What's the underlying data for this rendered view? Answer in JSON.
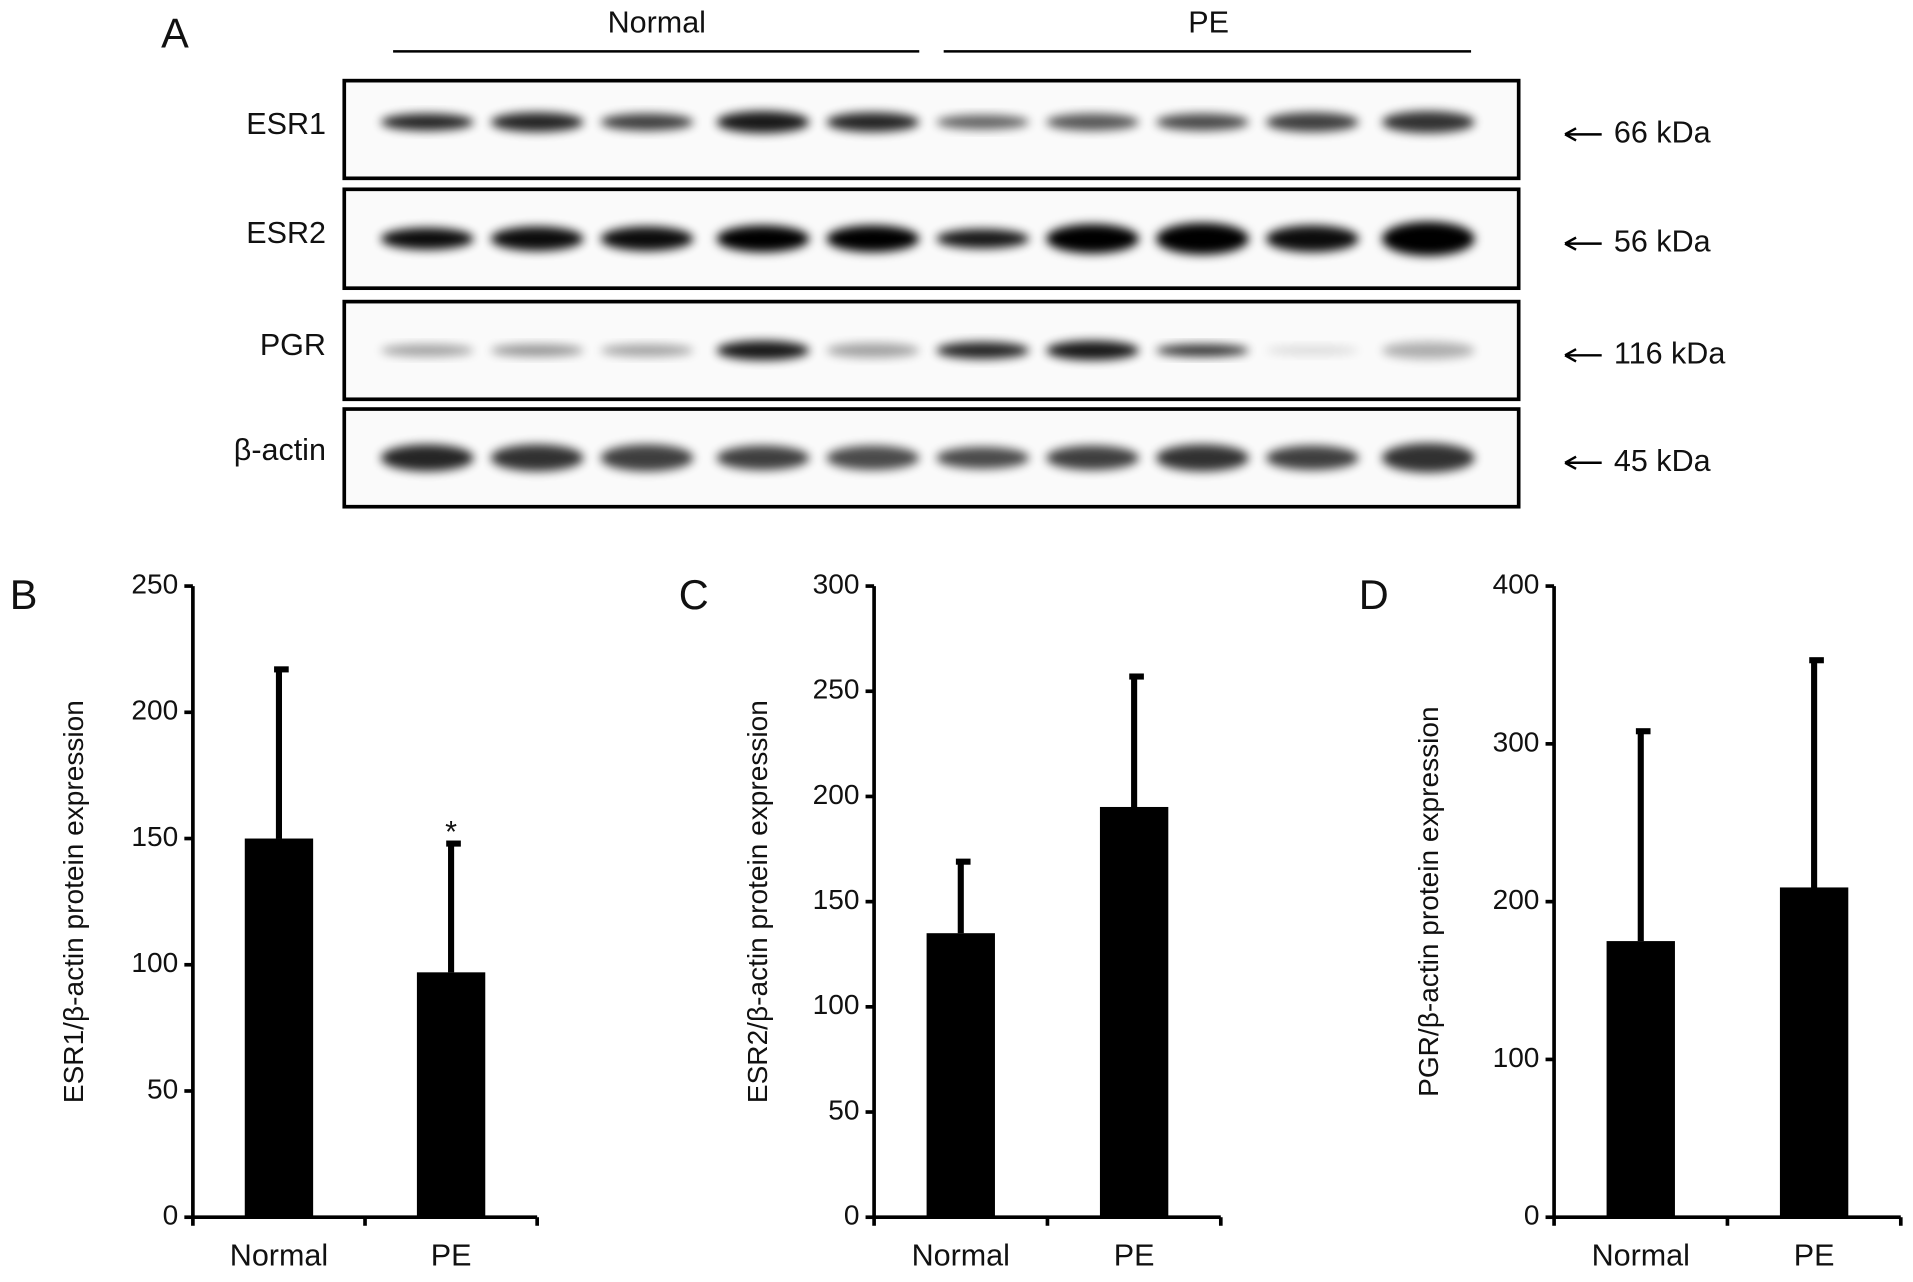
{
  "blot": {
    "panel": "A",
    "groups": [
      "Normal",
      "PE"
    ],
    "rows": [
      {
        "label": "ESR1",
        "size": "66 kDa"
      },
      {
        "label": "ESR2",
        "size": "56 kDa"
      },
      {
        "label": "PGR",
        "size": "116 kDa"
      },
      {
        "label": "β-actin",
        "size": "45 kDa"
      }
    ]
  },
  "chart_data": [
    {
      "type": "bar",
      "panel": "B",
      "y_label": "ESR1/β-actin protein expression",
      "categories": [
        "Normal",
        "PE"
      ],
      "values": [
        150,
        97
      ],
      "errors": [
        67,
        51
      ],
      "color": "#000000",
      "annotations": [
        {
          "text": "*",
          "x": "PE"
        }
      ],
      "ylim": [
        0,
        250
      ],
      "yticks": [
        0,
        50,
        100,
        150,
        200,
        250
      ]
    },
    {
      "type": "bar",
      "panel": "C",
      "y_label": "ESR2/β-actin protein expression",
      "categories": [
        "Normal",
        "PE"
      ],
      "values": [
        135,
        195
      ],
      "errors": [
        34,
        62
      ],
      "color": "#000000",
      "ylim": [
        0,
        300
      ],
      "yticks": [
        0,
        50,
        100,
        150,
        200,
        250,
        300
      ]
    },
    {
      "type": "bar",
      "panel": "D",
      "y_label": "PGR/β-actin protein expression",
      "categories": [
        "Normal",
        "PE"
      ],
      "values": [
        175,
        209
      ],
      "errors": [
        133,
        144
      ],
      "color": "#000000",
      "ylim": [
        0,
        400
      ],
      "yticks": [
        0,
        100,
        200,
        300,
        400
      ]
    }
  ]
}
